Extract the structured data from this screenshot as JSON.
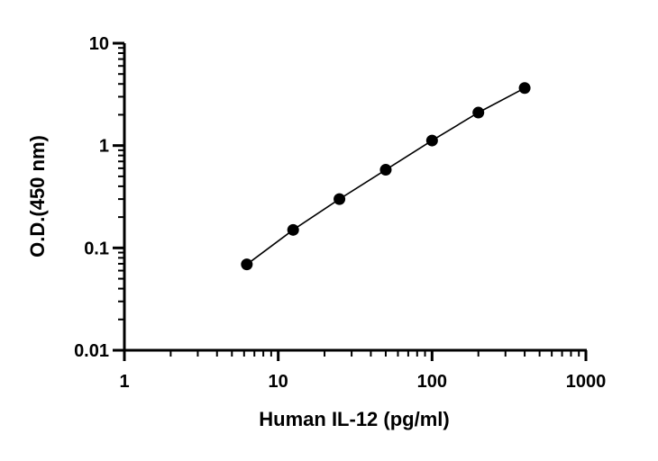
{
  "chart_data": {
    "type": "scatter",
    "title": "",
    "xlabel": "Human IL-12 (pg/ml)",
    "ylabel": "O.D.(450 nm)",
    "x_scale": "log",
    "y_scale": "log",
    "xlim": [
      1,
      1000
    ],
    "ylim": [
      0.01,
      10
    ],
    "x_ticks": [
      {
        "value": 1,
        "label": "1"
      },
      {
        "value": 10,
        "label": "10"
      },
      {
        "value": 100,
        "label": "100"
      },
      {
        "value": 1000,
        "label": "1000"
      }
    ],
    "y_ticks": [
      {
        "value": 0.01,
        "label": "0.01"
      },
      {
        "value": 0.1,
        "label": "0.1"
      },
      {
        "value": 1,
        "label": "1"
      },
      {
        "value": 10,
        "label": "10"
      }
    ],
    "grid": false,
    "legend": "none",
    "series": [
      {
        "x": [
          6.25,
          12.5,
          25,
          50,
          100,
          200,
          400
        ],
        "y": [
          0.069,
          0.15,
          0.3,
          0.58,
          1.12,
          2.1,
          3.65
        ],
        "color": "#000000",
        "marker": "circle",
        "line": true
      }
    ]
  }
}
